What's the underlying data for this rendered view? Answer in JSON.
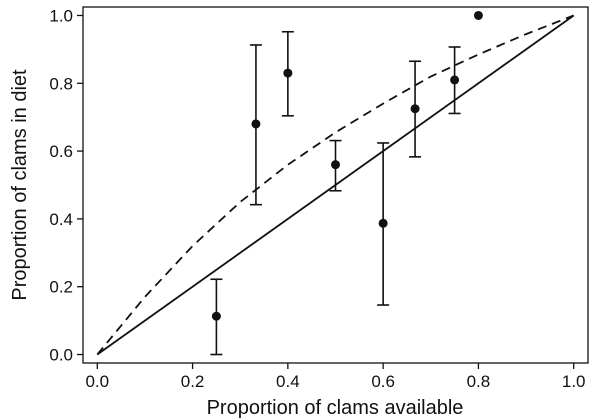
{
  "chart_data": {
    "type": "scatter",
    "title": "",
    "xlabel": "Proportion of clams available",
    "ylabel": "Proportion of clams in diet",
    "xlim": [
      -0.03,
      1.03
    ],
    "ylim": [
      -0.025,
      1.025
    ],
    "x_ticks": [
      0.0,
      0.2,
      0.4,
      0.6,
      0.8,
      1.0
    ],
    "x_tick_labels": [
      "0.0",
      "0.2",
      "0.4",
      "0.6",
      "0.8",
      "1.0"
    ],
    "y_ticks": [
      0.0,
      0.2,
      0.4,
      0.6,
      0.8,
      1.0
    ],
    "y_tick_labels": [
      "0.0",
      "0.2",
      "0.4",
      "0.6",
      "0.8",
      "1.0"
    ],
    "grid": false,
    "points": [
      {
        "x": 0.25,
        "y": 0.113,
        "lower": 0.0,
        "upper": 0.222
      },
      {
        "x": 0.333,
        "y": 0.68,
        "lower": 0.442,
        "upper": 0.913
      },
      {
        "x": 0.4,
        "y": 0.83,
        "lower": 0.704,
        "upper": 0.952
      },
      {
        "x": 0.5,
        "y": 0.56,
        "lower": 0.483,
        "upper": 0.631
      },
      {
        "x": 0.6,
        "y": 0.387,
        "lower": 0.146,
        "upper": 0.624
      },
      {
        "x": 0.667,
        "y": 0.725,
        "lower": 0.583,
        "upper": 0.865
      },
      {
        "x": 0.75,
        "y": 0.81,
        "lower": 0.711,
        "upper": 0.907
      },
      {
        "x": 0.8,
        "y": 1.0
      }
    ],
    "lines": [
      {
        "style": "solid",
        "x": [
          0.0,
          1.0
        ],
        "y": [
          0.0,
          1.0
        ]
      },
      {
        "style": "dashed",
        "x": [
          0.0,
          0.1,
          0.2,
          0.3,
          0.4,
          0.5,
          0.6,
          0.7,
          0.8,
          0.9,
          1.0
        ],
        "y": [
          0.0,
          0.17,
          0.32,
          0.45,
          0.56,
          0.655,
          0.74,
          0.82,
          0.885,
          0.945,
          1.0
        ]
      }
    ]
  }
}
